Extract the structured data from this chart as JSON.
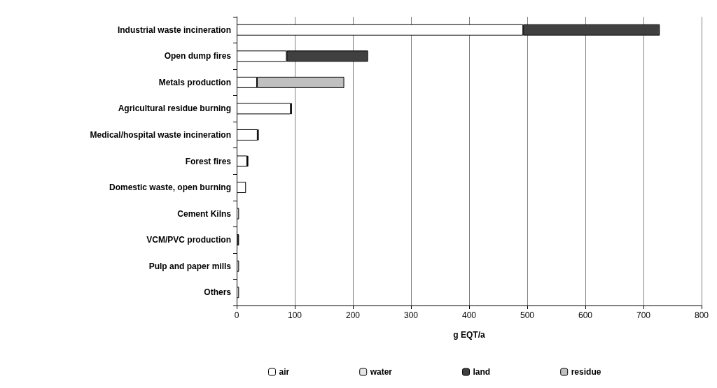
{
  "chart_data": {
    "type": "bar",
    "orientation": "horizontal",
    "stacked": true,
    "xlabel": "g EQT/a",
    "categories": [
      "Industrial waste incineration",
      "Open dump fires",
      "Metals production",
      "Agricultural residue burning",
      "Medical/hospital waste incineration",
      "Forest fires",
      "Domestic waste, open burning",
      "Cement Kilns",
      "VCM/PVC production",
      "Pulp and paper mills",
      "Others"
    ],
    "series": [
      {
        "name": "air",
        "color": "#ffffff",
        "values": [
          493,
          86,
          35,
          93,
          36,
          18,
          16,
          4,
          null,
          null,
          4
        ]
      },
      {
        "name": "water",
        "color": "#e6e6e6",
        "values": [
          null,
          null,
          null,
          null,
          null,
          null,
          null,
          null,
          null,
          4,
          null
        ]
      },
      {
        "name": "land",
        "color": "#404040",
        "values": [
          235,
          140,
          null,
          2,
          2,
          2,
          null,
          null,
          4,
          null,
          null
        ]
      },
      {
        "name": "residue",
        "color": "#c0c0c0",
        "values": [
          null,
          null,
          150,
          null,
          null,
          null,
          null,
          null,
          null,
          null,
          null
        ]
      }
    ],
    "xlim": [
      0,
      800
    ],
    "xticks": [
      0,
      100,
      200,
      300,
      400,
      500,
      600,
      700,
      800
    ],
    "grid": "x",
    "legend": "bottom"
  }
}
